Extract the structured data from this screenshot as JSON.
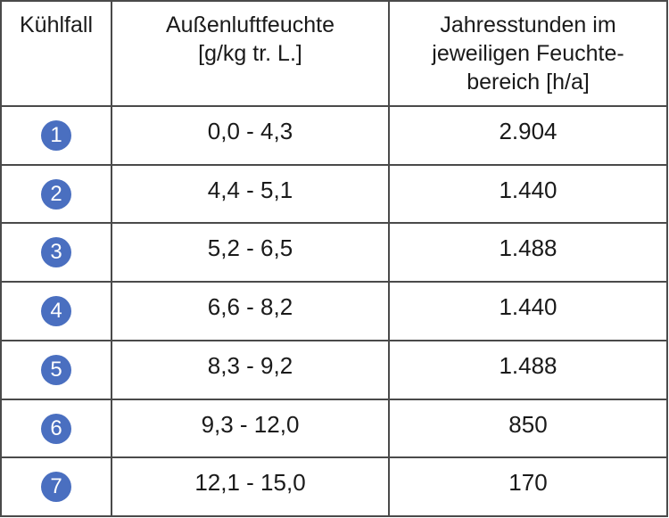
{
  "colors": {
    "badge": "#4a6fc0",
    "border": "#4a4a4a",
    "text": "#1a1a1a"
  },
  "table": {
    "headers": [
      {
        "lines": [
          "Kühlfall"
        ]
      },
      {
        "lines": [
          "Außenluftfeuchte",
          "[g/kg tr. L.]"
        ]
      },
      {
        "lines": [
          "Jahresstunden im",
          "jeweiligen Feuchte-",
          "bereich [h/a]"
        ]
      }
    ],
    "rows": [
      {
        "case": "1",
        "humidity": "0,0 - 4,3",
        "hours": "2.904"
      },
      {
        "case": "2",
        "humidity": "4,4 - 5,1",
        "hours": "1.440"
      },
      {
        "case": "3",
        "humidity": "5,2 - 6,5",
        "hours": "1.488"
      },
      {
        "case": "4",
        "humidity": "6,6 - 8,2",
        "hours": "1.440"
      },
      {
        "case": "5",
        "humidity": "8,3 - 9,2",
        "hours": "1.488"
      },
      {
        "case": "6",
        "humidity": "9,3 - 12,0",
        "hours": "850"
      },
      {
        "case": "7",
        "humidity": "12,1 - 15,0",
        "hours": "170"
      }
    ]
  }
}
